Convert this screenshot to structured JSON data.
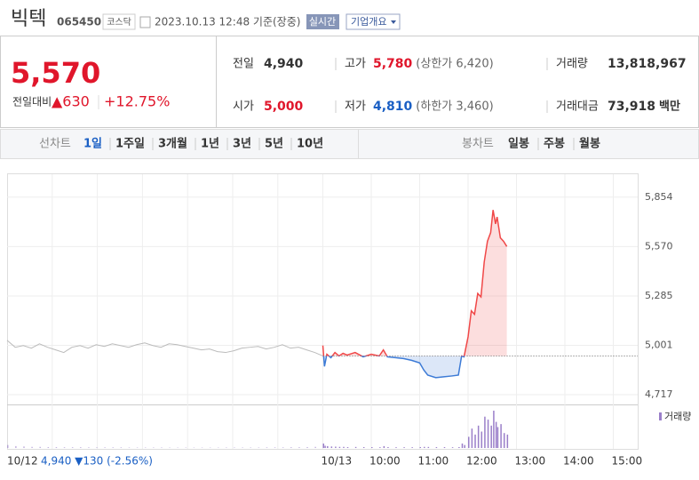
{
  "header": {
    "name": "빅텍",
    "code": "065450",
    "market": "코스닥",
    "timestamp": "2023.10.13 12:48 기준(장중)",
    "realtime_button": "실시간",
    "company_button": "기업개요"
  },
  "quote": {
    "price": "5,570",
    "change_label": "전일대비",
    "change": "▲630",
    "change_rate": "+12.75%"
  },
  "stats": [
    [
      {
        "label": "전일",
        "value": "4,940"
      },
      {
        "label": "고가",
        "value": "5,780",
        "note": "(상한가 6,420)"
      },
      {
        "label": "거래량",
        "value": "13,818,967"
      }
    ],
    [
      {
        "label": "시가",
        "value": "5,000"
      },
      {
        "label": "저가",
        "value": "4,810",
        "note": "(하한가 3,460)"
      },
      {
        "label": "거래대금",
        "value": "73,918",
        "unit": "백만"
      }
    ]
  ],
  "tabs": {
    "line_label": "선차트",
    "line_periods": [
      "1일",
      "1주일",
      "3개월",
      "1년",
      "3년",
      "5년",
      "10년"
    ],
    "candle_label": "봉차트",
    "candle_periods": [
      "일봉",
      "주봉",
      "월봉"
    ]
  },
  "chart_data": {
    "type": "line",
    "ylim": [
      4661,
      5986
    ],
    "yticks": [
      {
        "value": 4717,
        "label": "4,717"
      },
      {
        "value": 5001,
        "label": "5,001"
      },
      {
        "value": 5285,
        "label": "5,285"
      },
      {
        "value": 5570,
        "label": "5,570"
      },
      {
        "value": 5854,
        "label": "5,854"
      }
    ],
    "xticks": [
      {
        "value": "09:00",
        "label": "10/13"
      },
      "10:00",
      "11:00",
      "12:00",
      "13:00",
      "14:00",
      "15:00"
    ],
    "baseline": 4940,
    "up_color": "#f04848",
    "down_color": "#3d7bd6",
    "previous": {
      "name": "10/12",
      "color": "#bbbbbb",
      "summary": "4,940 ▼130 (-2.56%)",
      "values": [
        5030,
        4990,
        5000,
        4985,
        5010,
        4990,
        4975,
        4960,
        4990,
        5000,
        4985,
        5005,
        4995,
        5010,
        5000,
        4990,
        5005,
        5015,
        5000,
        4990,
        5010,
        5005,
        4995,
        4985,
        4975,
        4980,
        4965,
        4960,
        4970,
        4985,
        4990,
        4995,
        4980,
        4990,
        5005,
        4985,
        4990,
        4975,
        4960,
        4940
      ],
      "volume": [
        40,
        25,
        20,
        15,
        15,
        12,
        12,
        10,
        10,
        10,
        8,
        8,
        8,
        8,
        8,
        6,
        6,
        6,
        6,
        6,
        5,
        5,
        5,
        5,
        5,
        5,
        5,
        6,
        6,
        6,
        6,
        6,
        8,
        8,
        8,
        10,
        10,
        12,
        15,
        20
      ]
    },
    "today": {
      "x": [
        "09:00",
        "09:02",
        "09:05",
        "09:10",
        "09:15",
        "09:20",
        "09:25",
        "09:30",
        "09:40",
        "09:50",
        "10:00",
        "10:10",
        "10:15",
        "10:20",
        "10:30",
        "10:40",
        "10:50",
        "11:00",
        "11:05",
        "11:10",
        "11:20",
        "11:30",
        "11:40",
        "11:48",
        "11:52",
        "11:55",
        "12:00",
        "12:04",
        "12:08",
        "12:12",
        "12:16",
        "12:20",
        "12:24",
        "12:28",
        "12:31",
        "12:34",
        "12:36",
        "12:40",
        "12:44",
        "12:48"
      ],
      "values": [
        5000,
        4880,
        4950,
        4930,
        4960,
        4940,
        4955,
        4945,
        4960,
        4935,
        4950,
        4940,
        4975,
        4935,
        4930,
        4925,
        4915,
        4900,
        4860,
        4830,
        4815,
        4820,
        4825,
        4830,
        4940,
        4935,
        5050,
        5200,
        5180,
        5300,
        5280,
        5480,
        5600,
        5650,
        5780,
        5700,
        5740,
        5620,
        5600,
        5570
      ],
      "volume": [
        60,
        30,
        25,
        20,
        18,
        15,
        15,
        12,
        14,
        12,
        12,
        10,
        25,
        12,
        10,
        10,
        10,
        12,
        15,
        14,
        12,
        12,
        10,
        12,
        60,
        40,
        150,
        260,
        180,
        300,
        220,
        420,
        380,
        300,
        500,
        350,
        280,
        320,
        200,
        180
      ]
    },
    "volume_legend": "거래량",
    "volume_color": "#9a7fc9"
  }
}
